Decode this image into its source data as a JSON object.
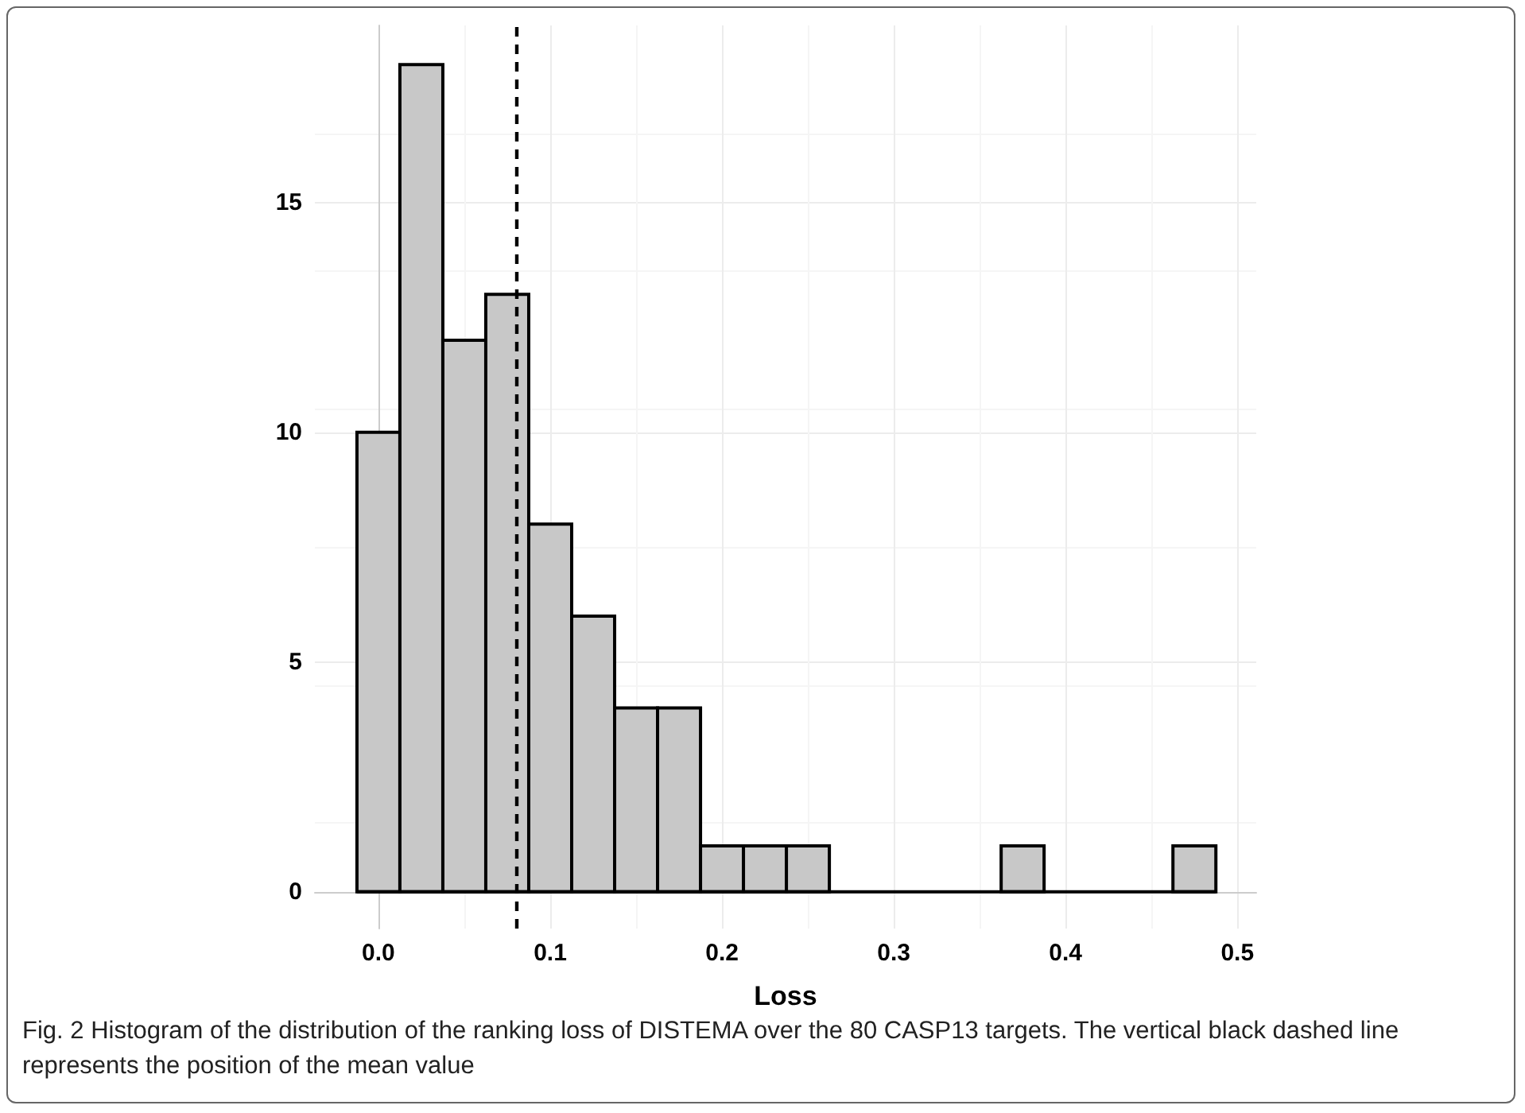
{
  "chart_data": {
    "type": "histogram",
    "xlabel": "Loss",
    "bins": [
      -0.0125,
      0.0125,
      0.0375,
      0.0625,
      0.0875,
      0.1125,
      0.1375,
      0.1625,
      0.1875,
      0.2125,
      0.2375,
      0.2625,
      0.2875,
      0.3125,
      0.3375,
      0.3625,
      0.3875,
      0.4125,
      0.4375,
      0.4625,
      0.4875
    ],
    "values": [
      10,
      18,
      12,
      13,
      8,
      6,
      4,
      4,
      1,
      1,
      1,
      0,
      0,
      0,
      0,
      1,
      0,
      0,
      0,
      1
    ],
    "color": "#c8c8c8",
    "xlim": [
      -0.037,
      0.511
    ],
    "xticks": [
      {
        "value": 0,
        "label": "0.0"
      },
      {
        "value": 0.1,
        "label": "0.1"
      },
      {
        "value": 0.2,
        "label": "0.2"
      },
      {
        "value": 0.3,
        "label": "0.3"
      },
      {
        "value": 0.4,
        "label": "0.4"
      },
      {
        "value": 0.5,
        "label": "0.5"
      }
    ],
    "ylim": [
      -0.8,
      18.85
    ],
    "yticks": [
      0,
      5,
      10,
      15
    ],
    "grid": true,
    "ref_lines": [
      {
        "axis": "x",
        "value": 0.079,
        "color": "#000000",
        "line_style": "dashed"
      }
    ],
    "annotations": [
      "Fig. 2  Histogram of the distribution of the ranking loss of DISTEMA over the 80 CASP13 targets. The vertical black dashed line represents the position of the mean value"
    ]
  }
}
